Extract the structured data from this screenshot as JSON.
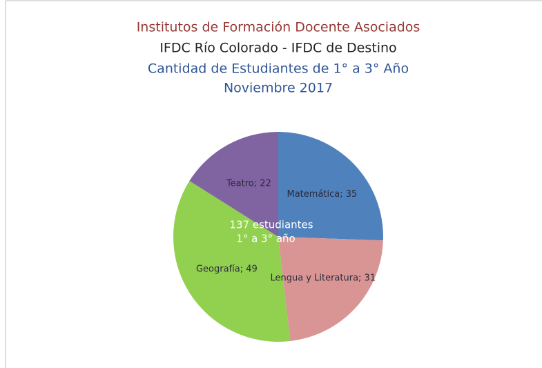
{
  "chart_data": {
    "type": "pie",
    "title": "Institutos de Formación Docente Asociados",
    "subtitle": [
      "IFDC Río Colorado - IFDC de Destino",
      "Cantidad de Estudiantes de 1° a 3° Año",
      "Noviembre 2017"
    ],
    "categories": [
      "Matemática",
      "Lengua y Literatura",
      "Geografía",
      "Teatro"
    ],
    "values": [
      35,
      31,
      49,
      22
    ],
    "value_labels": [
      "Matemática; 35",
      "Lengua y Literatura; 31",
      "Geografía; 49",
      "Teatro; 22"
    ],
    "colors": [
      "#4f81bd",
      "#d99594",
      "#92d050",
      "#8064a2"
    ],
    "annotations": [
      "137 estudiantes",
      "1° a 3°  año"
    ]
  }
}
